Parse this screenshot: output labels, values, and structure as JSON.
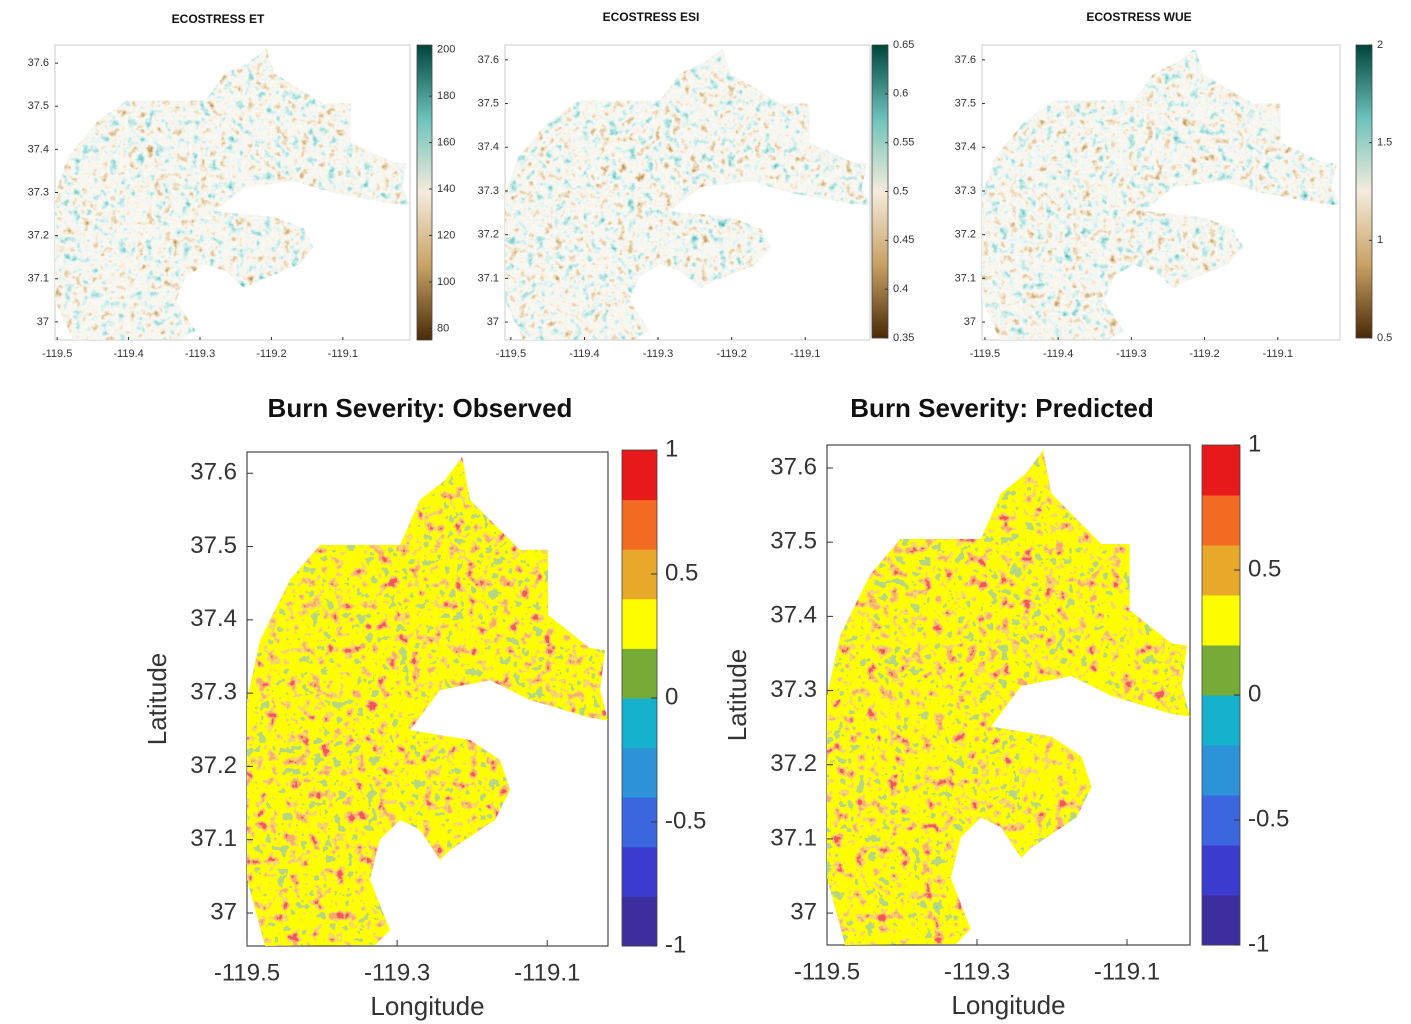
{
  "maps": [
    {
      "title": "ECOSTRESS ET",
      "xlim": [
        -119.503,
        -119.006
      ],
      "ylim": [
        36.958,
        37.642
      ],
      "xticks": [
        -119.5,
        -119.4,
        -119.3,
        -119.2,
        -119.1
      ],
      "yticks": [
        37,
        37.1,
        37.2,
        37.3,
        37.4,
        37.5,
        37.6
      ],
      "colorbar": {
        "scale": "continuous",
        "clim": [
          75,
          202
        ],
        "ticks": [
          80,
          100,
          120,
          140,
          160,
          180,
          200
        ],
        "colors": [
          "#4a2a07",
          "#c8a165",
          "#f5ecdc",
          "#6cc2bb",
          "#00443c"
        ]
      }
    },
    {
      "title": "ECOSTRESS ESI",
      "xlim": [
        -119.508,
        -119.012
      ],
      "ylim": [
        36.959,
        37.634
      ],
      "xticks": [
        -119.5,
        -119.4,
        -119.3,
        -119.2,
        -119.1
      ],
      "yticks": [
        37,
        37.1,
        37.2,
        37.3,
        37.4,
        37.5,
        37.6
      ],
      "colorbar": {
        "scale": "continuous",
        "clim": [
          0.35,
          0.65
        ],
        "ticks": [
          0.35,
          0.4,
          0.45,
          0.5,
          0.55,
          0.6,
          0.65
        ],
        "colors": [
          "#4a2a07",
          "#c8a165",
          "#f5ecdc",
          "#6cc2bb",
          "#00443c"
        ]
      }
    },
    {
      "title": "ECOSTRESS WUE",
      "xlim": [
        -119.504,
        -119.015
      ],
      "ylim": [
        36.959,
        37.634
      ],
      "xticks": [
        -119.5,
        -119.4,
        -119.3,
        -119.2,
        -119.1
      ],
      "yticks": [
        37,
        37.1,
        37.2,
        37.3,
        37.4,
        37.5,
        37.6
      ],
      "colorbar": {
        "scale": "continuous",
        "clim": [
          0.5,
          2
        ],
        "ticks": [
          0.5,
          1,
          1.5,
          2
        ],
        "colors": [
          "#4a2a07",
          "#c8a165",
          "#f5ecdc",
          "#6cc2bb",
          "#00443c"
        ]
      }
    },
    {
      "title": "Burn Severity: Observed",
      "x_label": "Longitude",
      "y_label": "Latitude",
      "xlim": [
        -119.5,
        -119.019
      ],
      "ylim": [
        36.955,
        37.629
      ],
      "xticks": [
        -119.5,
        -119.3,
        -119.1
      ],
      "yticks": [
        37,
        37.1,
        37.2,
        37.3,
        37.4,
        37.5,
        37.6
      ],
      "colorbar": {
        "scale": "discrete",
        "clim": [
          -1,
          1
        ],
        "ticks": [
          -1,
          -0.5,
          0,
          0.5,
          1
        ],
        "colors": [
          "#3d2e9e",
          "#3c3bd0",
          "#3b66e0",
          "#2d93d8",
          "#16b1cc",
          "#77ab38",
          "#fefe00",
          "#e8a92a",
          "#f36b23",
          "#e8191b"
        ]
      }
    },
    {
      "title": "Burn Severity: Predicted",
      "x_label": "Longitude",
      "y_label": "Latitude",
      "xlim": [
        -119.5,
        -119.016
      ],
      "ylim": [
        36.957,
        37.631
      ],
      "xticks": [
        -119.5,
        -119.3,
        -119.1
      ],
      "yticks": [
        37,
        37.1,
        37.2,
        37.3,
        37.4,
        37.5,
        37.6
      ],
      "colorbar": {
        "scale": "discrete",
        "clim": [
          -1,
          1
        ],
        "ticks": [
          -1,
          -0.5,
          0,
          0.5,
          1
        ],
        "colors": [
          "#3d2e9e",
          "#3c3bd0",
          "#3b66e0",
          "#2d93d8",
          "#16b1cc",
          "#77ab38",
          "#fefe00",
          "#e8a92a",
          "#f36b23",
          "#e8191b"
        ]
      }
    }
  ]
}
